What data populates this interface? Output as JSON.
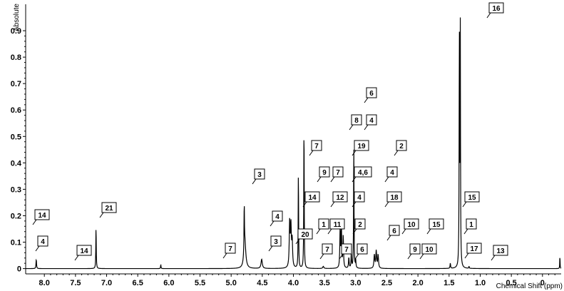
{
  "chart_data": {
    "type": "line",
    "xlabel": "Chemical Shift (ppm)",
    "ylabel": "Absolute",
    "xlim": [
      8.3,
      -0.3
    ],
    "ylim": [
      -0.02,
      1.0
    ],
    "x_ticks": [
      "8.0",
      "7.5",
      "7.0",
      "6.5",
      "6.0",
      "5.5",
      "5.0",
      "4.5",
      "4.0",
      "3.5",
      "3.0",
      "2.5",
      "2.0",
      "1.5",
      "1.0",
      "0.5",
      "0"
    ],
    "y_ticks": [
      "0",
      "0.1",
      "0.2",
      "0.3",
      "0.4",
      "0.5",
      "0.6",
      "0.7",
      "0.8",
      "0.9"
    ],
    "line_color": "#000000",
    "peaks": [
      {
        "x": 8.13,
        "y": 0.035,
        "w": 0.005
      },
      {
        "x": 7.17,
        "y": 0.16,
        "w": 0.004
      },
      {
        "x": 6.13,
        "y": 0.015,
        "w": 0.004
      },
      {
        "x": 4.78,
        "y": 0.1,
        "w": 0.018
      },
      {
        "x": 4.79,
        "y": 0.18,
        "w": 0.004
      },
      {
        "x": 4.51,
        "y": 0.035,
        "w": 0.012
      },
      {
        "x": 4.06,
        "y": 0.17,
        "w": 0.008
      },
      {
        "x": 4.04,
        "y": 0.15,
        "w": 0.008
      },
      {
        "x": 4.02,
        "y": 0.1,
        "w": 0.008
      },
      {
        "x": 3.92,
        "y": 0.37,
        "w": 0.004
      },
      {
        "x": 3.83,
        "y": 0.56,
        "w": 0.004
      },
      {
        "x": 3.52,
        "y": 0.008,
        "w": 0.01
      },
      {
        "x": 3.25,
        "y": 0.14,
        "w": 0.006
      },
      {
        "x": 3.23,
        "y": 0.17,
        "w": 0.006
      },
      {
        "x": 3.2,
        "y": 0.12,
        "w": 0.006
      },
      {
        "x": 3.11,
        "y": 0.04,
        "w": 0.006
      },
      {
        "x": 3.07,
        "y": 0.06,
        "w": 0.005
      },
      {
        "x": 3.03,
        "y": 0.48,
        "w": 0.004
      },
      {
        "x": 3.0,
        "y": 0.03,
        "w": 0.005
      },
      {
        "x": 2.7,
        "y": 0.05,
        "w": 0.008
      },
      {
        "x": 2.67,
        "y": 0.065,
        "w": 0.008
      },
      {
        "x": 2.64,
        "y": 0.05,
        "w": 0.008
      },
      {
        "x": 1.48,
        "y": 0.02,
        "w": 0.005
      },
      {
        "x": 1.335,
        "y": 0.88,
        "w": 0.004
      },
      {
        "x": 1.32,
        "y": 0.9,
        "w": 0.004
      },
      {
        "x": 1.18,
        "y": 0.008,
        "w": 0.004
      },
      {
        "x": -0.28,
        "y": 0.05,
        "w": 0.003
      }
    ],
    "annotations": [
      {
        "label": "16",
        "x": 1.32,
        "bx": 686,
        "by": 4
      },
      {
        "label": "6",
        "x": 3.03,
        "bx": 514,
        "by": 123
      },
      {
        "label": "8",
        "x": 3.27,
        "bx": 493,
        "by": 161
      },
      {
        "label": "4",
        "x": 3.03,
        "bx": 514,
        "by": 161
      },
      {
        "label": "19",
        "x": 3.22,
        "bx": 497,
        "by": 197
      },
      {
        "label": "7",
        "x": 3.93,
        "bx": 437,
        "by": 197
      },
      {
        "label": "2",
        "x": 2.55,
        "bx": 556,
        "by": 197
      },
      {
        "label": "9",
        "x": 3.65,
        "bx": 448,
        "by": 234
      },
      {
        "label": "7",
        "x": 3.5,
        "bx": 467,
        "by": 234
      },
      {
        "label": "4,6",
        "x": 3.2,
        "bx": 497,
        "by": 234
      },
      {
        "label": "4",
        "x": 2.7,
        "bx": 543,
        "by": 234
      },
      {
        "label": "3",
        "x": 4.8,
        "bx": 357,
        "by": 237
      },
      {
        "label": "14",
        "x": 4.0,
        "bx": 428,
        "by": 269
      },
      {
        "label": "12",
        "x": 3.55,
        "bx": 467,
        "by": 269
      },
      {
        "label": "4",
        "x": 3.2,
        "bx": 497,
        "by": 269
      },
      {
        "label": "18",
        "x": 2.65,
        "bx": 543,
        "by": 269
      },
      {
        "label": "15",
        "x": 1.45,
        "bx": 652,
        "by": 269
      },
      {
        "label": "21",
        "x": 7.18,
        "bx": 143,
        "by": 284
      },
      {
        "label": "14",
        "x": 8.2,
        "bx": 49,
        "by": 294
      },
      {
        "label": "4",
        "x": 4.52,
        "bx": 382,
        "by": 296
      },
      {
        "label": "10",
        "x": 2.45,
        "bx": 567,
        "by": 307
      },
      {
        "label": "15",
        "x": 2.05,
        "bx": 602,
        "by": 307
      },
      {
        "label": "1",
        "x": 3.75,
        "bx": 447,
        "by": 307
      },
      {
        "label": "11",
        "x": 3.6,
        "bx": 463,
        "by": 307
      },
      {
        "label": "2",
        "x": 3.2,
        "bx": 498,
        "by": 307
      },
      {
        "label": "1",
        "x": 1.45,
        "bx": 654,
        "by": 307
      },
      {
        "label": "6",
        "x": 2.68,
        "bx": 546,
        "by": 316
      },
      {
        "label": "20",
        "x": 4.05,
        "bx": 418,
        "by": 321
      },
      {
        "label": "3",
        "x": 4.52,
        "bx": 380,
        "by": 331
      },
      {
        "label": "4",
        "x": 8.13,
        "bx": 53,
        "by": 331
      },
      {
        "label": "7",
        "x": 5.22,
        "bx": 316,
        "by": 341
      },
      {
        "label": "14",
        "x": 7.65,
        "bx": 108,
        "by": 344
      },
      {
        "label": "7",
        "x": 3.72,
        "bx": 452,
        "by": 342
      },
      {
        "label": "7",
        "x": 3.45,
        "bx": 479,
        "by": 342
      },
      {
        "label": "6",
        "x": 3.06,
        "bx": 501,
        "by": 342
      },
      {
        "label": "9",
        "x": 2.3,
        "bx": 575,
        "by": 342
      },
      {
        "label": "10",
        "x": 2.1,
        "bx": 592,
        "by": 342
      },
      {
        "label": "17",
        "x": 1.45,
        "bx": 655,
        "by": 341
      },
      {
        "label": "13",
        "x": 1.1,
        "bx": 692,
        "by": 344
      }
    ]
  }
}
